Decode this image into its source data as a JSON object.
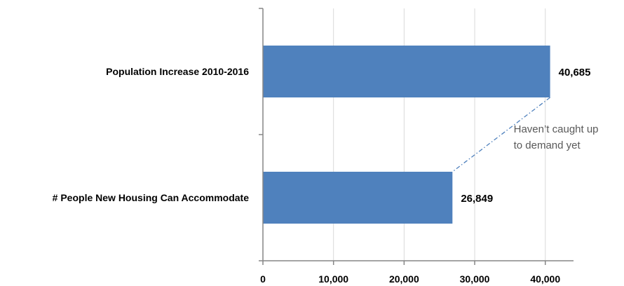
{
  "chart_data": {
    "type": "bar",
    "orientation": "horizontal",
    "categories": [
      "Population Increase 2010-2016",
      "# People New Housing Can Accommodate"
    ],
    "values": [
      40685,
      26849
    ],
    "data_labels": [
      "40,685",
      "26,849"
    ],
    "xlim": [
      0,
      44000
    ],
    "xticks": [
      0,
      10000,
      20000,
      30000,
      40000
    ],
    "xtick_labels": [
      "0",
      "10,000",
      "20,000",
      "30,000",
      "40,000"
    ],
    "grid": true,
    "annotation": {
      "text_lines": [
        "Haven’t caught up",
        "to demand yet"
      ],
      "connects": [
        "Population Increase 2010-2016",
        "# People New Housing Can Accommodate"
      ]
    },
    "colors": {
      "bar": "#4f81bd",
      "grid": "#d9d9d9",
      "axis": "#868686",
      "annotation_line": "#4f81bd",
      "annotation_text": "#595959"
    }
  }
}
